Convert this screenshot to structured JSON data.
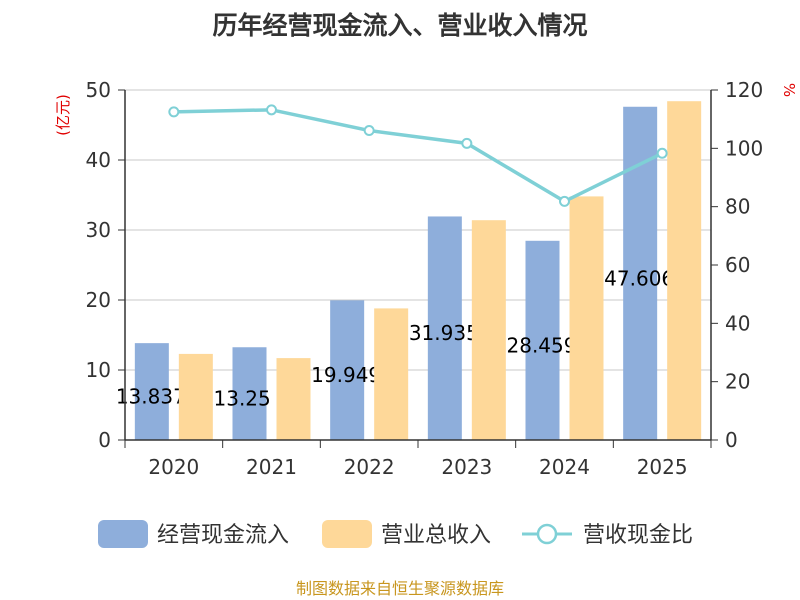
{
  "chart_data": {
    "type": "bar",
    "title": "历年经营现金流入、营业收入情况",
    "categories": [
      "2020",
      "2021",
      "2022",
      "2023",
      "2024",
      "2025"
    ],
    "series": [
      {
        "name": "经营现金流入",
        "axis": "left",
        "type": "bar",
        "color": "#8eaedb",
        "values": [
          13.837,
          13.25,
          19.949,
          31.935,
          28.459,
          47.606
        ],
        "data_labels": [
          "13.837",
          "13.25",
          "19.949",
          "31.935",
          "28.459",
          "47.606"
        ]
      },
      {
        "name": "营业总收入",
        "axis": "left",
        "type": "bar",
        "color": "#fed899",
        "values": [
          12.3,
          11.7,
          18.8,
          31.4,
          34.8,
          48.4
        ]
      },
      {
        "name": "营收现金比",
        "axis": "right",
        "type": "line",
        "color": "#7fd0d6",
        "values": [
          112.5,
          113.2,
          106.1,
          101.7,
          81.8,
          98.3
        ]
      }
    ],
    "y_left": {
      "unit": "(亿元)",
      "ylim": [
        0,
        50
      ],
      "ticks": [
        "0",
        "10",
        "20",
        "30",
        "40",
        "50"
      ]
    },
    "y_right": {
      "unit": "%",
      "ylim": [
        0,
        120
      ],
      "ticks": [
        "0",
        "20",
        "40",
        "60",
        "80",
        "100",
        "120"
      ]
    },
    "grid": true,
    "legend": {
      "position": "bottom"
    },
    "source": "制图数据来自恒生聚源数据库"
  }
}
